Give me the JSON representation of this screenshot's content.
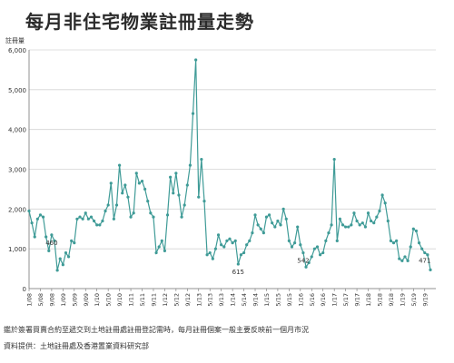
{
  "title": "每月非住宅物業註冊量走勢",
  "footnote": "鑑於簽署買賣合約至遞交到土地註冊處註冊登記需時，每月註冊個案一般主要反映前一個月市況",
  "source": "資料提供：土地註冊處及香港置業資料研究部",
  "chart_data": {
    "type": "line",
    "ylabel": "註冊量",
    "xlabel": "",
    "ylim": [
      0,
      6000
    ],
    "yticks": [
      0,
      1000,
      2000,
      3000,
      4000,
      5000,
      6000
    ],
    "ytick_labels": [
      "0",
      "1,000",
      "2,000",
      "3,000",
      "4,000",
      "5,000",
      "6,000"
    ],
    "xtick_labels": [
      "1/08",
      "5/08",
      "9/08",
      "1/09",
      "5/09",
      "9/09",
      "1/10",
      "5/10",
      "9/10",
      "1/11",
      "5/11",
      "9/11",
      "1/12",
      "5/12",
      "9/12",
      "1/13",
      "5/13",
      "9/13",
      "1/14",
      "5/14",
      "9/14",
      "1/15",
      "5/15",
      "9/15",
      "1/16",
      "5/16",
      "9/16",
      "1/17",
      "5/17",
      "9/17",
      "1/18",
      "5/18",
      "9/18",
      "1/19",
      "5/19",
      "9/19"
    ],
    "annotations": [
      {
        "text": "460",
        "index": 8
      },
      {
        "text": "615",
        "index": 74
      },
      {
        "text": "542",
        "index": 97
      },
      {
        "text": "471",
        "index": 140
      }
    ],
    "grid": true,
    "color": "#3f9b97",
    "series": [
      {
        "values": [
          1950,
          1650,
          1300,
          1750,
          1850,
          1800,
          1300,
          950,
          1350,
          1200,
          460,
          750,
          600,
          900,
          800,
          1200,
          1150,
          1750,
          1800,
          1750,
          1900,
          1750,
          1800,
          1700,
          1600,
          1600,
          1700,
          1950,
          2100,
          2650,
          1750,
          2100,
          3100,
          2400,
          2600,
          2300,
          1800,
          1900,
          2900,
          2650,
          2700,
          2500,
          2200,
          1900,
          1800,
          900,
          1050,
          1200,
          950,
          1850,
          2800,
          2400,
          2900,
          2350,
          1800,
          2100,
          2600,
          3100,
          4400,
          5750,
          2300,
          3250,
          2200,
          850,
          900,
          750,
          1000,
          1350,
          1100,
          1050,
          1200,
          1250,
          1150,
          1200,
          615,
          850,
          900,
          1100,
          1200,
          1400,
          1850,
          1600,
          1500,
          1400,
          1800,
          1850,
          1650,
          1550,
          1700,
          1600,
          2000,
          1750,
          1200,
          1050,
          1150,
          1550,
          1100,
          900,
          542,
          650,
          800,
          1000,
          1050,
          850,
          900,
          1200,
          1400,
          1600,
          3250,
          1200,
          1750,
          1600,
          1550,
          1550,
          1600,
          1900,
          1700,
          1600,
          1650,
          1550,
          1900,
          1700,
          1650,
          1800,
          1950,
          2350,
          2150,
          1700,
          1200,
          1150,
          1200,
          750,
          700,
          800,
          700,
          1050,
          1500,
          1450,
          1150,
          1000,
          900,
          850,
          471
        ]
      }
    ]
  }
}
